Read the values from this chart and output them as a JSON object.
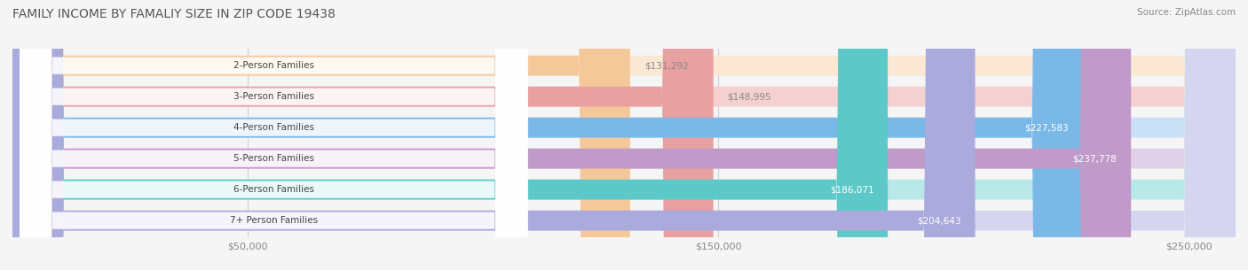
{
  "title": "FAMILY INCOME BY FAMALIY SIZE IN ZIP CODE 19438",
  "source": "Source: ZipAtlas.com",
  "categories": [
    "2-Person Families",
    "3-Person Families",
    "4-Person Families",
    "5-Person Families",
    "6-Person Families",
    "7+ Person Families"
  ],
  "values": [
    131292,
    148995,
    227583,
    237778,
    186071,
    204643
  ],
  "labels": [
    "$131,292",
    "$148,995",
    "$227,583",
    "$237,778",
    "$186,071",
    "$204,643"
  ],
  "bar_colors": [
    "#F5C89A",
    "#E8A0A0",
    "#7AB8E8",
    "#C09AC8",
    "#5DC8C8",
    "#AAAADC"
  ],
  "bar_bg_colors": [
    "#FAE8D5",
    "#F5D0D0",
    "#C8DFF5",
    "#E0D0E8",
    "#B8E8E8",
    "#D5D5F0"
  ],
  "label_inside": [
    false,
    false,
    true,
    true,
    true,
    true
  ],
  "xlim": [
    0,
    260000
  ],
  "xticks": [
    50000,
    150000,
    250000
  ],
  "xticklabels": [
    "$50,000",
    "$150,000",
    "$250,000"
  ],
  "background_color": "#f5f5f5",
  "bar_height": 0.65,
  "title_fontsize": 10,
  "label_fontsize": 7.5,
  "tick_fontsize": 8,
  "cat_fontsize": 7.5
}
